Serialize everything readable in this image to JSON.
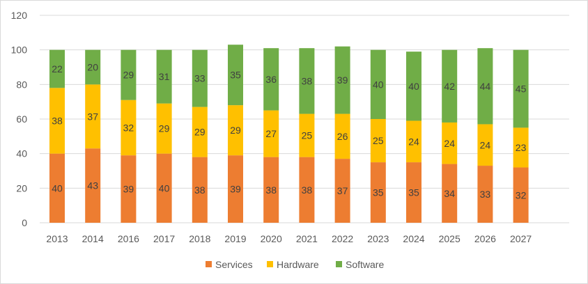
{
  "chart_data": {
    "type": "bar",
    "stacked": true,
    "categories": [
      "2013",
      "2014",
      "2016",
      "2017",
      "2018",
      "2019",
      "2020",
      "2021",
      "2022",
      "2023",
      "2024",
      "2025",
      "2026",
      "2027"
    ],
    "series": [
      {
        "name": "Services",
        "color": "#ED7D31",
        "values": [
          40,
          43,
          39,
          40,
          38,
          39,
          38,
          38,
          37,
          35,
          35,
          34,
          33,
          32
        ]
      },
      {
        "name": "Hardware",
        "color": "#FFC000",
        "values": [
          38,
          37,
          32,
          29,
          29,
          29,
          27,
          25,
          26,
          25,
          24,
          24,
          24,
          23
        ]
      },
      {
        "name": "Software",
        "color": "#70AD47",
        "values": [
          22,
          20,
          29,
          31,
          33,
          35,
          36,
          38,
          39,
          40,
          40,
          42,
          44,
          45
        ]
      }
    ],
    "y_ticks": [
      "0",
      "20",
      "40",
      "60",
      "80",
      "100",
      "120"
    ],
    "ylim": [
      0,
      120
    ],
    "grid": true,
    "legend_position": "bottom",
    "title": "",
    "xlabel": "",
    "ylabel": ""
  }
}
